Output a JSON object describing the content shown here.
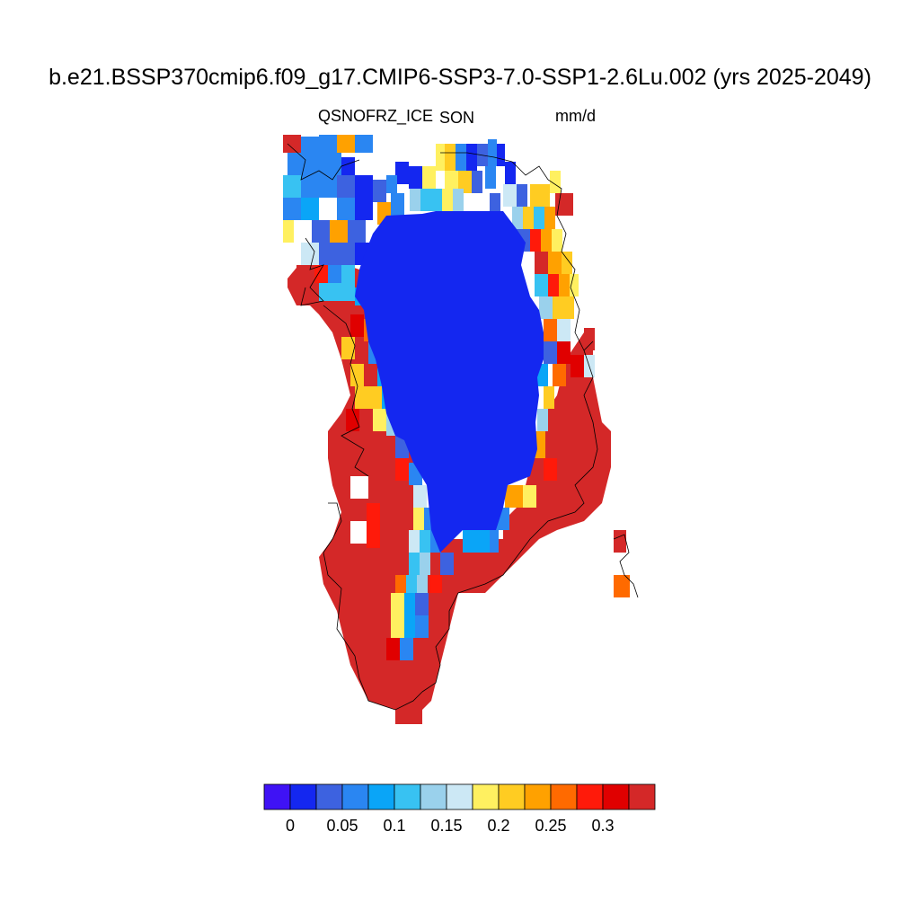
{
  "title": "b.e21.BSSP370cmip6.f09_g17.CMIP6-SSP3-7.0-SSP1-2.6Lu.002 (yrs 2025-2049)",
  "left_label": "QSNOFRZ_ICE",
  "center_label": "SON",
  "right_label": "mm/d",
  "colorbar": {
    "colors": [
      "#3f12f5",
      "#1427f0",
      "#3d62e0",
      "#2a86f2",
      "#0aa5f7",
      "#38c2f2",
      "#9ad1ec",
      "#cce8f5",
      "#fff060",
      "#ffcc22",
      "#ffa100",
      "#ff6a00",
      "#ff1a0a",
      "#e00000",
      "#d42828"
    ],
    "tick_labels": [
      "0",
      "0.05",
      "0.1",
      "0.15",
      "0.2",
      "0.25",
      "0.3"
    ]
  },
  "map": {
    "region": "Greenland",
    "dominant_interior_value": "0 - 0.025 (blue)",
    "coastal_value": "> 0.325 (dark red)"
  }
}
